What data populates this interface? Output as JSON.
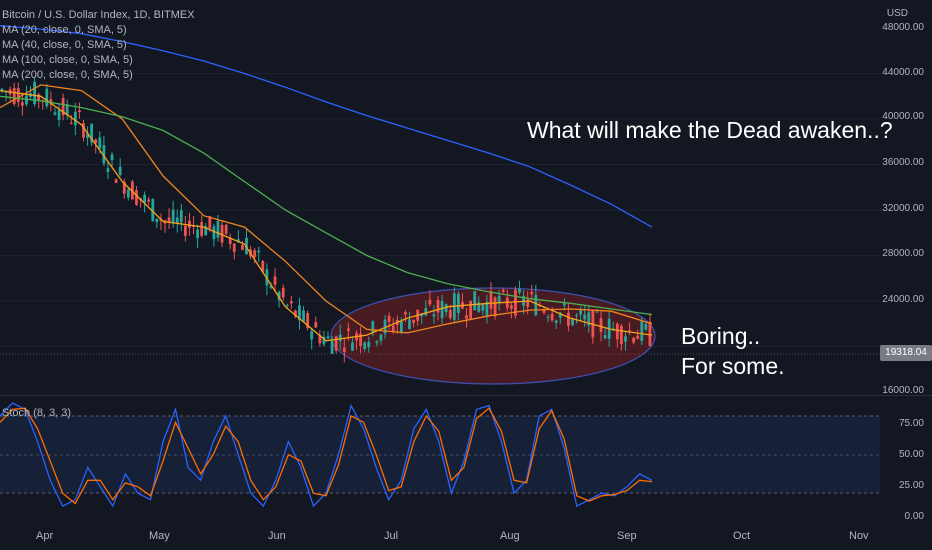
{
  "header": {
    "symbol": "Bitcoin / U.S. Dollar Index, 1D, BITMEX",
    "ma_labels": [
      "MA (20, close, 0, SMA, 5)",
      "MA (40, close, 0, SMA, 5)",
      "MA (100, close, 0, SMA, 5)",
      "MA (200, close, 0, SMA, 5)"
    ],
    "currency": "USD"
  },
  "annotations": {
    "question": "What will make the Dead awaken..?",
    "boring": "Boring..",
    "for_some": "For some."
  },
  "last_price": "19318.04",
  "stoch_label": "Stoch (8, 3, 3)",
  "colors": {
    "background": "#131722",
    "up": "#26a69a",
    "down": "#ef5350",
    "ma20": "#f7a21b",
    "ma40": "#f0851f",
    "ma100": "#4caf50",
    "ma200": "#2962ff",
    "stoch_k": "#2962ff",
    "stoch_d": "#ff6d00",
    "ellipse_fill": "#5a1e22",
    "ellipse_stroke": "#3f51b5"
  },
  "chart_data": [
    {
      "type": "candlestick",
      "title": "Bitcoin / U.S. Dollar Index, 1D, BITMEX",
      "ylabel": "USD",
      "ylim": [
        16000,
        48000
      ],
      "y_ticks": [
        "16000.00",
        "20000.00",
        "24000.00",
        "28000.00",
        "32000.00",
        "36000.00",
        "40000.00",
        "44000.00",
        "48000.00"
      ],
      "x_ticks": [
        "Apr",
        "May",
        "Jun",
        "Jul",
        "Aug",
        "Sep",
        "Oct",
        "Nov"
      ],
      "series": [
        {
          "name": "MA (20, close, 0, SMA, 5)",
          "x": [
            0,
            10,
            20,
            30,
            40,
            50,
            60,
            70,
            80,
            90,
            100,
            110,
            120,
            130,
            140,
            150,
            160
          ],
          "values": [
            42500,
            42000,
            39500,
            34500,
            31000,
            30500,
            29000,
            23500,
            20500,
            21000,
            22500,
            23500,
            23800,
            24000,
            22500,
            21500,
            21000
          ]
        },
        {
          "name": "MA (40, close, 0, SMA, 5)",
          "x": [
            0,
            10,
            20,
            30,
            40,
            50,
            60,
            70,
            80,
            90,
            100,
            110,
            120,
            130,
            140,
            150,
            160
          ],
          "values": [
            41000,
            43000,
            42500,
            40000,
            35000,
            31500,
            30500,
            27500,
            24000,
            21500,
            21200,
            22000,
            22700,
            23200,
            23300,
            23100,
            22000
          ]
        },
        {
          "name": "MA (100, close, 0, SMA, 5)",
          "x": [
            0,
            10,
            20,
            30,
            40,
            50,
            60,
            70,
            80,
            90,
            100,
            110,
            120,
            130,
            140,
            150,
            160
          ],
          "values": [
            42000,
            41600,
            41000,
            40200,
            39000,
            37000,
            34500,
            32000,
            30000,
            28000,
            26500,
            25500,
            24800,
            24200,
            23800,
            23300,
            22800
          ]
        },
        {
          "name": "MA (200, close, 0, SMA, 5)",
          "x": [
            0,
            10,
            20,
            30,
            40,
            50,
            60,
            70,
            80,
            90,
            100,
            110,
            120,
            130,
            140,
            150,
            160
          ],
          "values": [
            48200,
            47900,
            47500,
            46800,
            46000,
            45100,
            44000,
            42800,
            41500,
            40300,
            39200,
            38100,
            37000,
            35800,
            34200,
            32500,
            30500
          ]
        }
      ]
    },
    {
      "type": "line",
      "title": "Stoch (8, 3, 3)",
      "ylim": [
        0,
        90
      ],
      "y_ticks": [
        "0.00",
        "25.00",
        "50.00",
        "75.00"
      ],
      "series": [
        {
          "name": "Stoch %K",
          "values": [
            80,
            90,
            85,
            60,
            30,
            10,
            15,
            40,
            25,
            10,
            35,
            20,
            15,
            60,
            85,
            40,
            30,
            60,
            80,
            50,
            20,
            10,
            30,
            60,
            40,
            10,
            20,
            50,
            88,
            70,
            40,
            15,
            30,
            70,
            85,
            60,
            20,
            45,
            85,
            88,
            60,
            20,
            30,
            80,
            85,
            55,
            10,
            15,
            20,
            18,
            25,
            35,
            30
          ]
        },
        {
          "name": "Stoch %D",
          "values": [
            75,
            85,
            86,
            70,
            45,
            20,
            12,
            30,
            30,
            15,
            28,
            25,
            18,
            45,
            75,
            55,
            35,
            50,
            72,
            60,
            30,
            15,
            25,
            50,
            45,
            20,
            18,
            42,
            80,
            75,
            50,
            22,
            25,
            60,
            80,
            68,
            30,
            40,
            78,
            86,
            68,
            30,
            28,
            70,
            84,
            62,
            18,
            14,
            18,
            19,
            22,
            30,
            29
          ]
        }
      ]
    }
  ]
}
